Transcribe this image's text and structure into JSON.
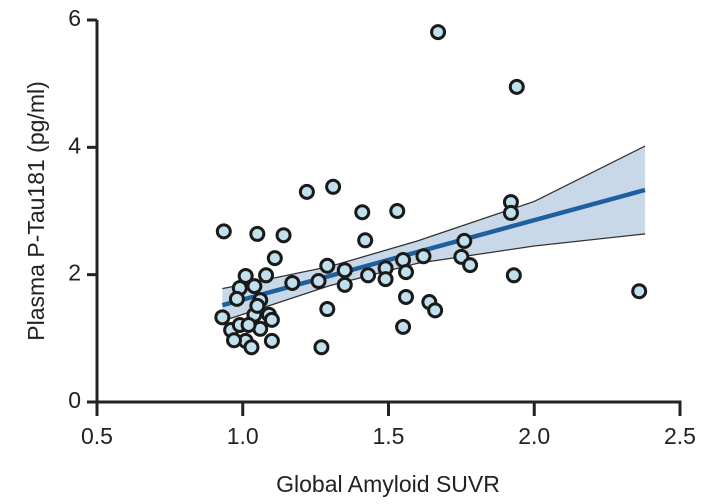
{
  "chart_data": {
    "type": "scatter",
    "xlabel": "Global Amyloid SUVR",
    "ylabel": "Plasma P-Tau181 (pg/ml)",
    "xlim": [
      0.5,
      2.5
    ],
    "ylim": [
      0,
      6
    ],
    "xticks": [
      0.5,
      {
        "value": 1,
        "label": "1.0"
      },
      1.5,
      {
        "value": 2,
        "label": "2.0"
      },
      2.5
    ],
    "yticks": [
      0,
      2,
      4,
      6
    ],
    "x": [
      0.935,
      1.05,
      1.14,
      1.22,
      1.31,
      1.41,
      1.53,
      1.42,
      1.67,
      1.94,
      1.92,
      1.92,
      1.93,
      2.36,
      1.76,
      1.75,
      1.78,
      1.62,
      1.55,
      1.56,
      1.49,
      1.49,
      1.56,
      1.64,
      1.66,
      1.55,
      1.43,
      1.35,
      1.35,
      1.29,
      1.26,
      1.29,
      1.27,
      1.17,
      1.11,
      1.08,
      1.01,
      0.99,
      1.04,
      1.06,
      1.04,
      1.09,
      1.1,
      0.98,
      0.93,
      0.96,
      0.99,
      1.01,
      1.03,
      1.06,
      1.1,
      0.97,
      1.05,
      1.02
    ],
    "values": [
      2.68,
      2.64,
      2.62,
      3.3,
      3.38,
      2.98,
      3.0,
      2.54,
      5.81,
      4.95,
      3.14,
      2.97,
      1.99,
      1.74,
      2.53,
      2.28,
      2.15,
      2.29,
      2.23,
      2.04,
      2.1,
      1.93,
      1.65,
      1.57,
      1.44,
      1.18,
      1.99,
      2.07,
      1.84,
      2.14,
      1.9,
      1.46,
      0.86,
      1.87,
      2.26,
      1.99,
      1.98,
      1.79,
      1.82,
      1.6,
      1.37,
      1.37,
      1.29,
      1.62,
      1.33,
      1.13,
      1.21,
      0.96,
      0.86,
      1.15,
      0.96,
      0.97,
      1.51,
      1.21
    ],
    "color": "#bfe0ec",
    "fit": {
      "x": [
        0.93,
        2.38
      ],
      "y": [
        1.52,
        3.33
      ],
      "color": "#1f5f9e"
    },
    "band": {
      "x": [
        0.93,
        1.3,
        1.6,
        2.0,
        2.38
      ],
      "upper": [
        1.78,
        2.13,
        2.53,
        3.15,
        4.02
      ],
      "lower": [
        1.27,
        1.83,
        2.18,
        2.45,
        2.64
      ],
      "color": "#c9d8e8"
    }
  }
}
